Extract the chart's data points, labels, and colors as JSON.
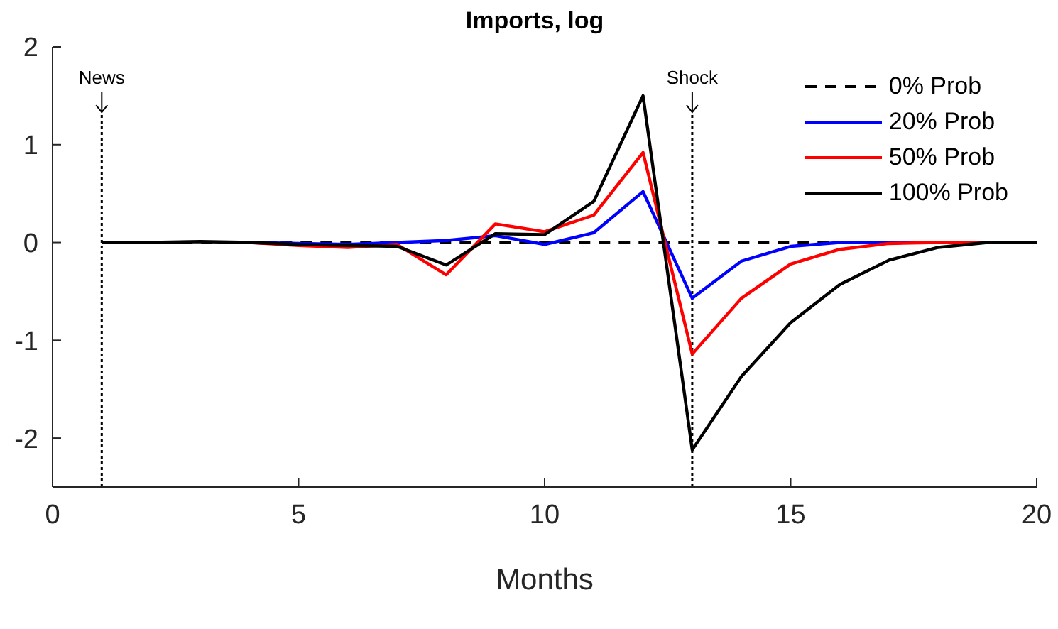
{
  "chart_data": {
    "type": "line",
    "title": "Imports, log",
    "xlabel": "Months",
    "x": [
      1,
      2,
      3,
      4,
      5,
      6,
      7,
      8,
      9,
      10,
      11,
      12,
      13,
      14,
      15,
      16,
      17,
      18,
      19,
      20
    ],
    "series": [
      {
        "name": "0% Prob",
        "color": "#000000",
        "line_style": "dashed",
        "values": [
          0,
          0,
          0,
          0,
          0,
          0,
          0,
          0,
          0,
          0,
          0,
          0,
          0,
          0,
          0,
          0,
          0,
          0,
          0,
          0
        ]
      },
      {
        "name": "20% Prob",
        "color": "#0000ff",
        "values": [
          null,
          null,
          null,
          0,
          -0.01,
          -0.02,
          0,
          0.02,
          0.07,
          -0.02,
          0.1,
          0.52,
          -0.57,
          -0.19,
          -0.04,
          0,
          0,
          0,
          0,
          0
        ]
      },
      {
        "name": "50% Prob",
        "color": "#ff0000",
        "values": [
          null,
          null,
          null,
          0,
          -0.03,
          -0.05,
          -0.02,
          -0.33,
          0.19,
          0.11,
          0.28,
          0.92,
          -1.14,
          -0.57,
          -0.22,
          -0.07,
          -0.01,
          0,
          0,
          0
        ]
      },
      {
        "name": "100% Prob",
        "color": "#000000",
        "values": [
          0,
          0,
          0.01,
          0,
          -0.02,
          -0.03,
          -0.04,
          -0.23,
          0.09,
          0.08,
          0.42,
          1.5,
          -2.12,
          -1.37,
          -0.82,
          -0.43,
          -0.18,
          -0.05,
          0,
          0
        ]
      }
    ],
    "xlim": [
      0,
      20
    ],
    "xticks": [
      0,
      5,
      10,
      15,
      20
    ],
    "ylim": [
      -2.5,
      2
    ],
    "yticks": [
      -2,
      -1,
      0,
      1,
      2
    ],
    "ref_lines": [
      {
        "axis": "x",
        "value": 1,
        "label": "News",
        "line_style": "dotted"
      },
      {
        "axis": "x",
        "value": 13,
        "label": "Shock",
        "line_style": "dotted"
      }
    ],
    "legend": "top right",
    "grid": false,
    "marker": "none",
    "line_style": "solid"
  }
}
